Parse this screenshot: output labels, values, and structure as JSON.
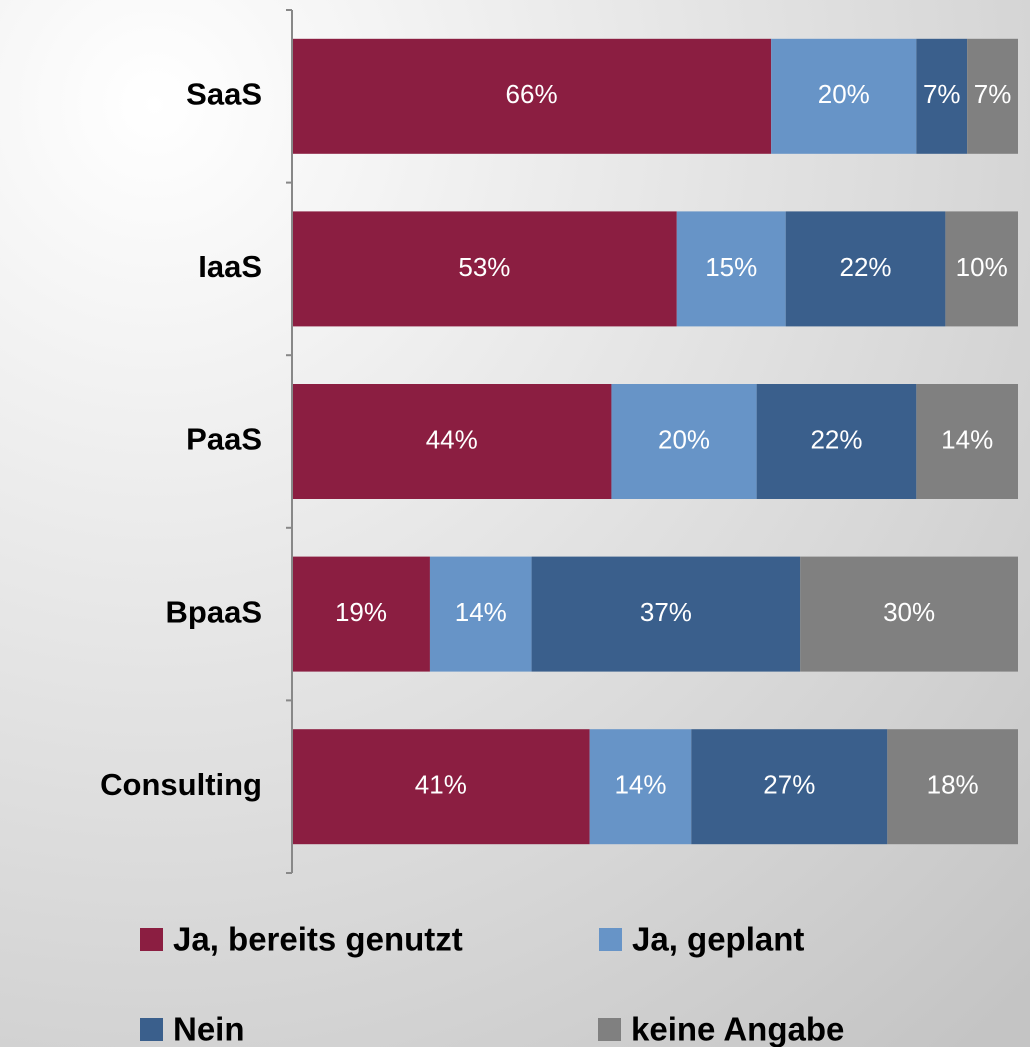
{
  "chart_data": {
    "type": "stacked-barh",
    "categories": [
      "SaaS",
      "IaaS",
      "PaaS",
      "BpaaS",
      "Consulting"
    ],
    "xlim": [
      0,
      100
    ],
    "series": [
      {
        "name": "Ja, bereits genutzt",
        "color": "#8b1e41",
        "values": [
          66,
          53,
          44,
          19,
          41
        ],
        "value_labels": [
          "66%",
          "53%",
          "44%",
          "19%",
          "41%"
        ]
      },
      {
        "name": "Ja, geplant",
        "color": "#6794c7",
        "values": [
          20,
          15,
          20,
          14,
          14
        ],
        "value_labels": [
          "20%",
          "15%",
          "20%",
          "14%",
          "14%"
        ]
      },
      {
        "name": "Nein",
        "color": "#3a5f8c",
        "values": [
          7,
          22,
          22,
          37,
          27
        ],
        "value_labels": [
          "7%",
          "22%",
          "22%",
          "37%",
          "27%"
        ]
      },
      {
        "name": "keine Angabe",
        "color": "#808080",
        "values": [
          7,
          10,
          14,
          30,
          18
        ],
        "value_labels": [
          "7%",
          "10%",
          "14%",
          "30%",
          "18%"
        ]
      }
    ]
  }
}
